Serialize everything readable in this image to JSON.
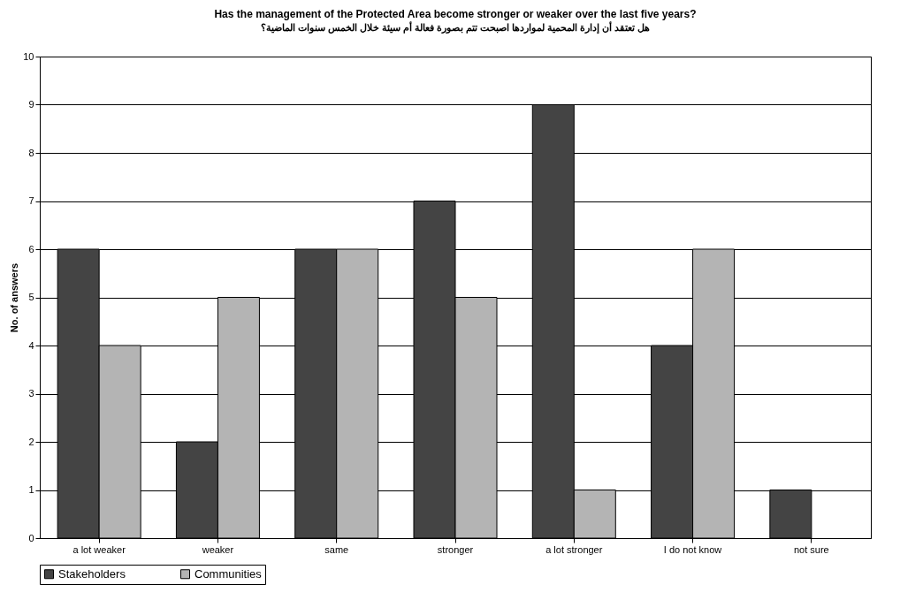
{
  "chart_data": {
    "type": "bar",
    "title": "Has the management of the Protected Area become stronger or weaker over the last five years?",
    "subtitle": "هل تعتقد أن إدارة المحمية لمواردها اصبحت تتم بصورة فعالة أم سيئة خلال الخمس سنوات الماضية؟",
    "ylabel": "No. of answers",
    "categories": [
      "a lot weaker",
      "weaker",
      "same",
      "stronger",
      "a lot stronger",
      "I do not know",
      "not sure"
    ],
    "series": [
      {
        "name": "Stakeholders",
        "color": "#444444",
        "values": [
          6,
          2,
          6,
          7,
          9,
          4,
          1
        ]
      },
      {
        "name": "Communities",
        "color": "#b4b4b4",
        "values": [
          4,
          5,
          6,
          5,
          1,
          6,
          null
        ]
      }
    ],
    "ylim": [
      0,
      10
    ],
    "yticks": [
      0,
      1,
      2,
      3,
      4,
      5,
      6,
      7,
      8,
      9,
      10
    ],
    "grid": "y",
    "legend": "bottom"
  }
}
